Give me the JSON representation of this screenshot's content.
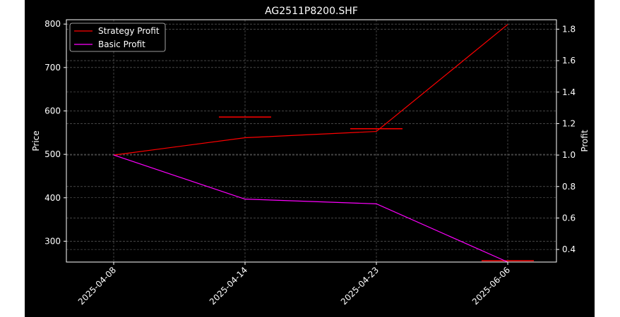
{
  "chart_data": {
    "type": "line",
    "title": "AG2511P8200.SHF",
    "xlabel": "",
    "ylabel": "Price",
    "y2label": "Profit",
    "categories": [
      "2025-04-08",
      "2025-04-14",
      "2025-04-23",
      "2025-06-06"
    ],
    "ylim": [
      252,
      810
    ],
    "y2lim": [
      0.32,
      1.86
    ],
    "yticks": [
      300,
      400,
      500,
      600,
      700,
      800
    ],
    "y2ticks": [
      0.4,
      0.6,
      0.8,
      1.0,
      1.2,
      1.4,
      1.6,
      1.8
    ],
    "grid": true,
    "legend_position": "top-left",
    "series": [
      {
        "name": "Strategy Profit",
        "axis": "right",
        "color": "#ff0000",
        "values": [
          1.0,
          1.11,
          1.15,
          1.83
        ]
      },
      {
        "name": "Basic Profit",
        "axis": "right",
        "color": "#ff00ff",
        "values": [
          1.0,
          0.72,
          0.69,
          0.32
        ]
      }
    ],
    "price_marks": {
      "color": "#ff0000",
      "segments": [
        {
          "x": "2025-04-14",
          "price": 586
        },
        {
          "x": "2025-04-23",
          "price": 559
        },
        {
          "x": "2025-06-06",
          "price": 255
        }
      ]
    }
  }
}
